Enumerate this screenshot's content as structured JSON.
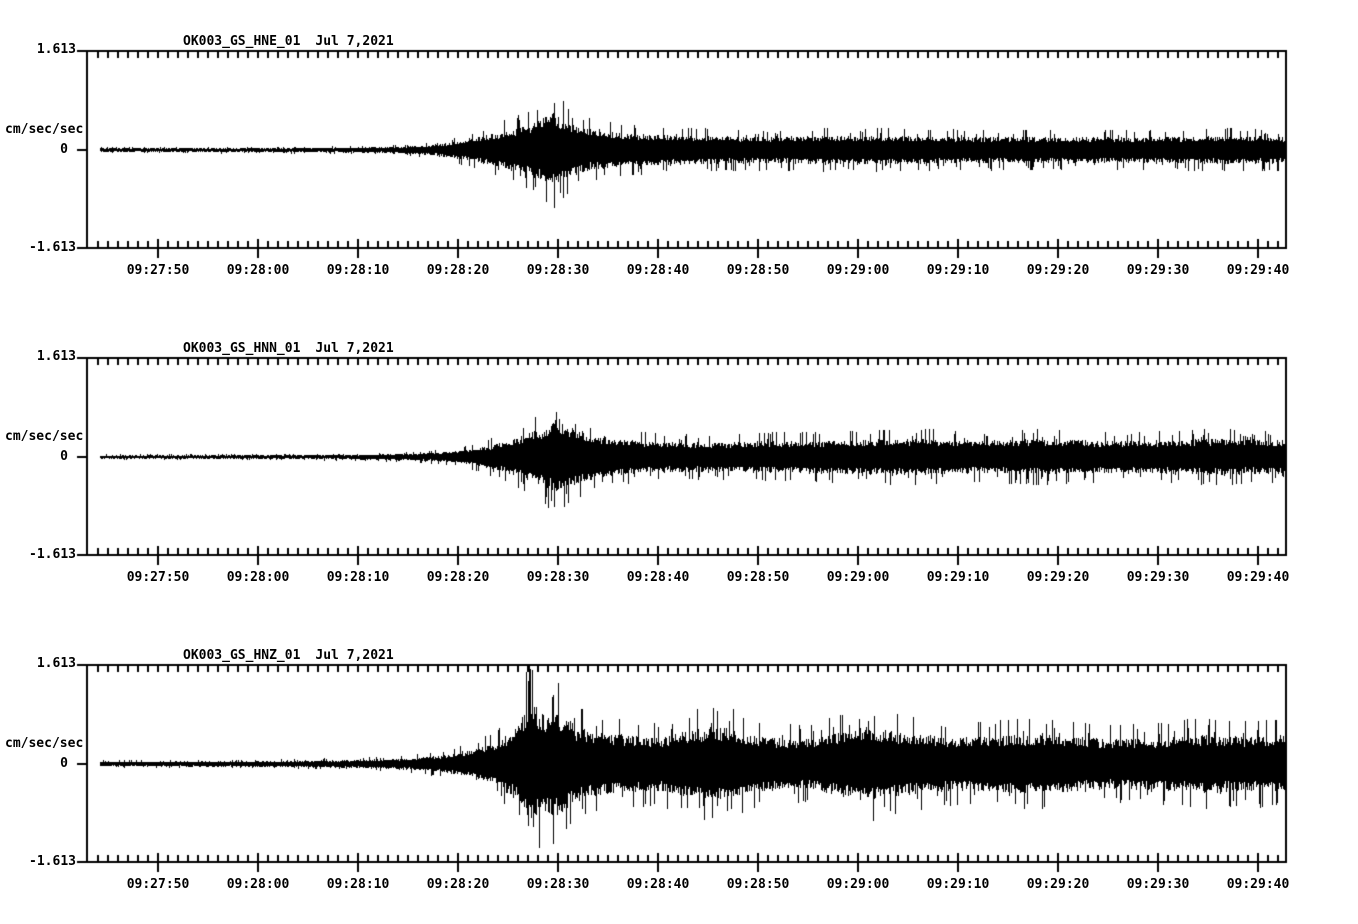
{
  "figure": {
    "background_color": "#ffffff",
    "trace_color": "#000000",
    "panel_count": 3
  },
  "chart_data": [
    {
      "type": "line",
      "kind": "seismogram",
      "station": "OK003_GS_HNE_01",
      "date": "Jul 7,2021",
      "ylabel": "cm/sec/sec",
      "ylim": [
        -1.613,
        1.613
      ],
      "ytick_labels": [
        "1.613",
        "0",
        "-1.613"
      ],
      "x_major_tick_labels": [
        "09:27:50",
        "09:28:00",
        "09:28:10",
        "09:28:20",
        "09:28:30",
        "09:28:40",
        "09:28:50",
        "09:29:00",
        "09:29:10",
        "09:29:20",
        "09:29:30",
        "09:29:40"
      ],
      "x_major_tick_seconds": 10,
      "x_minor_tick_seconds": 1,
      "grid": false,
      "amplitude_envelope": {
        "units": "cm/sec/sec",
        "t_zero_label": "09:27:50",
        "points": [
          [
            -6,
            0.05
          ],
          [
            10,
            0.05
          ],
          [
            18,
            0.06
          ],
          [
            24,
            0.08
          ],
          [
            27,
            0.12
          ],
          [
            29,
            0.18
          ],
          [
            31,
            0.26
          ],
          [
            33,
            0.38
          ],
          [
            35,
            0.5
          ],
          [
            37,
            0.62
          ],
          [
            38.5,
            0.8
          ],
          [
            39.5,
            0.95
          ],
          [
            41,
            0.7
          ],
          [
            43,
            0.52
          ],
          [
            46,
            0.42
          ],
          [
            50,
            0.38
          ],
          [
            55,
            0.35
          ],
          [
            60,
            0.33
          ],
          [
            70,
            0.36
          ],
          [
            80,
            0.33
          ],
          [
            90,
            0.32
          ],
          [
            100,
            0.32
          ],
          [
            107,
            0.35
          ],
          [
            113,
            0.33
          ]
        ]
      }
    },
    {
      "type": "line",
      "kind": "seismogram",
      "station": "OK003_GS_HNN_01",
      "date": "Jul 7,2021",
      "ylabel": "cm/sec/sec",
      "ylim": [
        -1.613,
        1.613
      ],
      "ytick_labels": [
        "1.613",
        "0",
        "-1.613"
      ],
      "x_major_tick_labels": [
        "09:27:50",
        "09:28:00",
        "09:28:10",
        "09:28:20",
        "09:28:30",
        "09:28:40",
        "09:28:50",
        "09:29:00",
        "09:29:10",
        "09:29:20",
        "09:29:30",
        "09:29:40"
      ],
      "x_major_tick_seconds": 10,
      "x_minor_tick_seconds": 1,
      "grid": false,
      "amplitude_envelope": {
        "units": "cm/sec/sec",
        "t_zero_label": "09:27:50",
        "points": [
          [
            -6,
            0.04
          ],
          [
            10,
            0.05
          ],
          [
            20,
            0.06
          ],
          [
            25,
            0.08
          ],
          [
            28,
            0.11
          ],
          [
            31,
            0.18
          ],
          [
            33,
            0.28
          ],
          [
            36,
            0.5
          ],
          [
            38.5,
            0.75
          ],
          [
            40,
            0.97
          ],
          [
            41.5,
            0.72
          ],
          [
            44,
            0.52
          ],
          [
            48,
            0.4
          ],
          [
            55,
            0.36
          ],
          [
            62,
            0.4
          ],
          [
            70,
            0.42
          ],
          [
            76,
            0.46
          ],
          [
            82,
            0.4
          ],
          [
            88,
            0.45
          ],
          [
            95,
            0.4
          ],
          [
            101,
            0.42
          ],
          [
            106,
            0.46
          ],
          [
            110,
            0.42
          ],
          [
            113,
            0.42
          ]
        ]
      }
    },
    {
      "type": "line",
      "kind": "seismogram",
      "station": "OK003_GS_HNZ_01",
      "date": "Jul 7,2021",
      "ylabel": "cm/sec/sec",
      "ylim": [
        -1.613,
        1.613
      ],
      "ytick_labels": [
        "1.613",
        "0",
        "-1.613"
      ],
      "x_major_tick_labels": [
        "09:27:50",
        "09:28:00",
        "09:28:10",
        "09:28:20",
        "09:28:30",
        "09:28:40",
        "09:28:50",
        "09:29:00",
        "09:29:10",
        "09:29:20",
        "09:29:30",
        "09:29:40"
      ],
      "x_major_tick_seconds": 10,
      "x_minor_tick_seconds": 1,
      "grid": false,
      "amplitude_envelope": {
        "units": "cm/sec/sec",
        "t_zero_label": "09:27:50",
        "points": [
          [
            -6,
            0.06
          ],
          [
            10,
            0.07
          ],
          [
            20,
            0.1
          ],
          [
            25,
            0.14
          ],
          [
            28,
            0.2
          ],
          [
            31,
            0.32
          ],
          [
            34,
            0.56
          ],
          [
            36,
            0.95
          ],
          [
            37,
            1.61
          ],
          [
            38.5,
            1.25
          ],
          [
            40,
            1.3
          ],
          [
            42,
            0.9
          ],
          [
            45,
            0.75
          ],
          [
            50,
            0.66
          ],
          [
            54,
            0.9
          ],
          [
            57,
            0.92
          ],
          [
            60,
            0.68
          ],
          [
            65,
            0.62
          ],
          [
            71,
            0.95
          ],
          [
            74,
            0.8
          ],
          [
            80,
            0.66
          ],
          [
            88,
            0.74
          ],
          [
            95,
            0.62
          ],
          [
            100,
            0.66
          ],
          [
            104,
            0.74
          ],
          [
            108,
            0.68
          ],
          [
            113,
            0.72
          ]
        ]
      }
    }
  ]
}
